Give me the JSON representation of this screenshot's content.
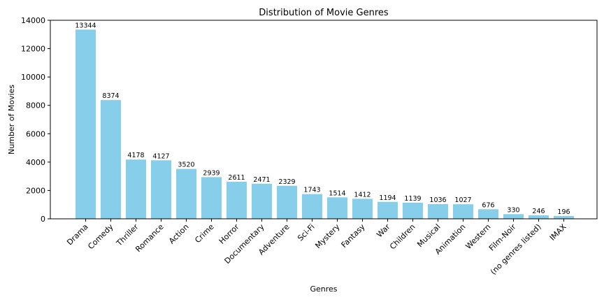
{
  "chart_data": {
    "type": "bar",
    "title": "Distribution of Movie Genres",
    "xlabel": "Genres",
    "ylabel": "Number of Movies",
    "ylim": [
      0,
      14000
    ],
    "yticks": [
      0,
      2000,
      4000,
      6000,
      8000,
      10000,
      12000,
      14000
    ],
    "grid": false,
    "bar_color": "#87CEEB",
    "categories": [
      "Drama",
      "Comedy",
      "Thriller",
      "Romance",
      "Action",
      "Crime",
      "Horror",
      "Documentary",
      "Adventure",
      "Sci-Fi",
      "Mystery",
      "Fantasy",
      "War",
      "Children",
      "Musical",
      "Animation",
      "Western",
      "Film-Noir",
      "(no genres listed)",
      "IMAX"
    ],
    "values": [
      13344,
      8374,
      4178,
      4127,
      3520,
      2939,
      2611,
      2471,
      2329,
      1743,
      1514,
      1412,
      1194,
      1139,
      1036,
      1027,
      676,
      330,
      246,
      196
    ]
  }
}
